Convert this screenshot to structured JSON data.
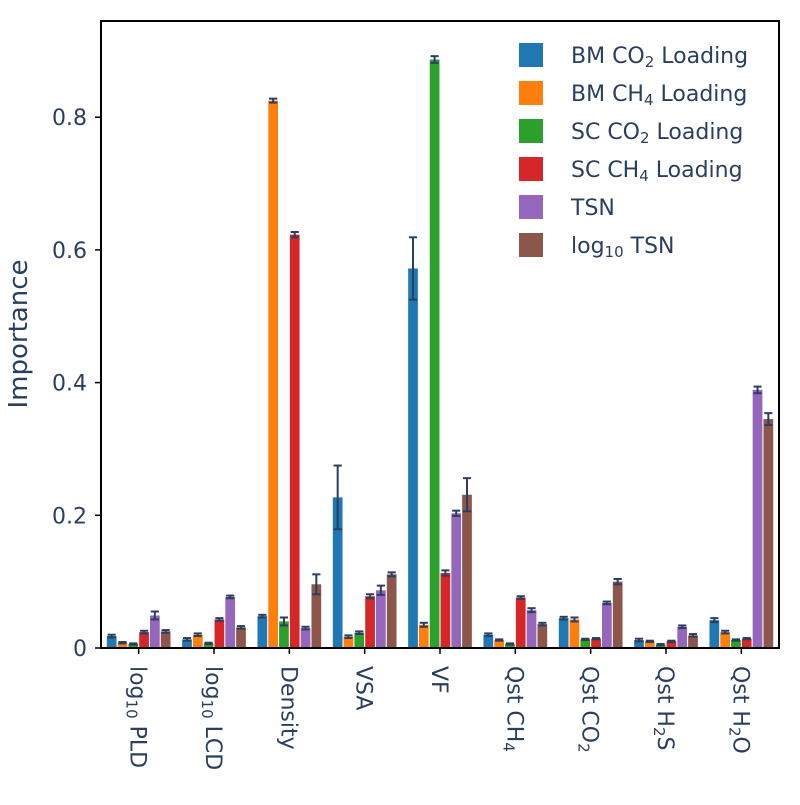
{
  "chart_data": {
    "type": "bar",
    "ylabel": "Importance",
    "ylim": [
      0,
      0.945
    ],
    "yticks": [
      0,
      0.2,
      0.4,
      0.6,
      0.8
    ],
    "ytick_labels": [
      "0",
      "0.2",
      "0.4",
      "0.6",
      "0.8"
    ],
    "categories": [
      "log10 PLD",
      "log10 LCD",
      "Density",
      "VSA",
      "VF",
      "Qst CH4",
      "Qst CO2",
      "Qst H2S",
      "Qst H2O"
    ],
    "category_labels": [
      [
        {
          "t": "log"
        },
        {
          "t": "10",
          "sub": true
        },
        {
          "t": " PLD"
        }
      ],
      [
        {
          "t": "log"
        },
        {
          "t": "10",
          "sub": true
        },
        {
          "t": " LCD"
        }
      ],
      [
        {
          "t": "Density"
        }
      ],
      [
        {
          "t": "VSA"
        }
      ],
      [
        {
          "t": "VF"
        }
      ],
      [
        {
          "t": "Qst CH"
        },
        {
          "t": "4",
          "sub": true
        }
      ],
      [
        {
          "t": "Qst CO"
        },
        {
          "t": "2",
          "sub": true
        }
      ],
      [
        {
          "t": "Qst H"
        },
        {
          "t": "2",
          "sub": true
        },
        {
          "t": "S"
        }
      ],
      [
        {
          "t": "Qst H"
        },
        {
          "t": "2",
          "sub": true
        },
        {
          "t": "O"
        }
      ]
    ],
    "legend_position": "top-right",
    "grid": false,
    "series": [
      {
        "name": "BM CO2 Loading",
        "name_parts": [
          {
            "t": "BM CO"
          },
          {
            "t": "2",
            "sub": true
          },
          {
            "t": " Loading"
          }
        ],
        "color": "#1f77b4",
        "values": [
          0.018,
          0.013,
          0.048,
          0.227,
          0.572,
          0.02,
          0.045,
          0.012,
          0.042
        ],
        "errors": [
          0.002,
          0.002,
          0.002,
          0.048,
          0.047,
          0.002,
          0.002,
          0.002,
          0.003
        ]
      },
      {
        "name": "BM CH4 Loading",
        "name_parts": [
          {
            "t": "BM CH"
          },
          {
            "t": "4",
            "sub": true
          },
          {
            "t": " Loading"
          }
        ],
        "color": "#ff7f0e",
        "values": [
          0.008,
          0.02,
          0.825,
          0.017,
          0.035,
          0.012,
          0.043,
          0.01,
          0.024
        ],
        "errors": [
          0.001,
          0.002,
          0.003,
          0.002,
          0.003,
          0.001,
          0.003,
          0.001,
          0.002
        ]
      },
      {
        "name": "SC CO2 Loading",
        "name_parts": [
          {
            "t": "SC CO"
          },
          {
            "t": "2",
            "sub": true
          },
          {
            "t": " Loading"
          }
        ],
        "color": "#2ca02c",
        "values": [
          0.006,
          0.007,
          0.04,
          0.023,
          0.887,
          0.006,
          0.013,
          0.005,
          0.012
        ],
        "errors": [
          0.001,
          0.001,
          0.006,
          0.002,
          0.005,
          0.001,
          0.001,
          0.001,
          0.001
        ]
      },
      {
        "name": "SC CH4 Loading",
        "name_parts": [
          {
            "t": "SC CH"
          },
          {
            "t": "4",
            "sub": true
          },
          {
            "t": " Loading"
          }
        ],
        "color": "#d62728",
        "values": [
          0.024,
          0.043,
          0.623,
          0.078,
          0.113,
          0.076,
          0.014,
          0.01,
          0.014
        ],
        "errors": [
          0.002,
          0.002,
          0.004,
          0.003,
          0.004,
          0.002,
          0.001,
          0.001,
          0.001
        ]
      },
      {
        "name": "TSN",
        "name_parts": [
          {
            "t": "TSN"
          }
        ],
        "color": "#9467bd",
        "values": [
          0.049,
          0.077,
          0.03,
          0.087,
          0.203,
          0.057,
          0.068,
          0.032,
          0.389
        ],
        "errors": [
          0.006,
          0.002,
          0.002,
          0.007,
          0.004,
          0.003,
          0.002,
          0.002,
          0.005
        ]
      },
      {
        "name": "log10 TSN",
        "name_parts": [
          {
            "t": "log"
          },
          {
            "t": "10",
            "sub": true
          },
          {
            "t": " TSN"
          }
        ],
        "color": "#8c564b",
        "values": [
          0.025,
          0.031,
          0.096,
          0.111,
          0.231,
          0.036,
          0.1,
          0.019,
          0.345
        ],
        "errors": [
          0.002,
          0.002,
          0.015,
          0.003,
          0.025,
          0.002,
          0.004,
          0.002,
          0.009
        ]
      }
    ]
  }
}
